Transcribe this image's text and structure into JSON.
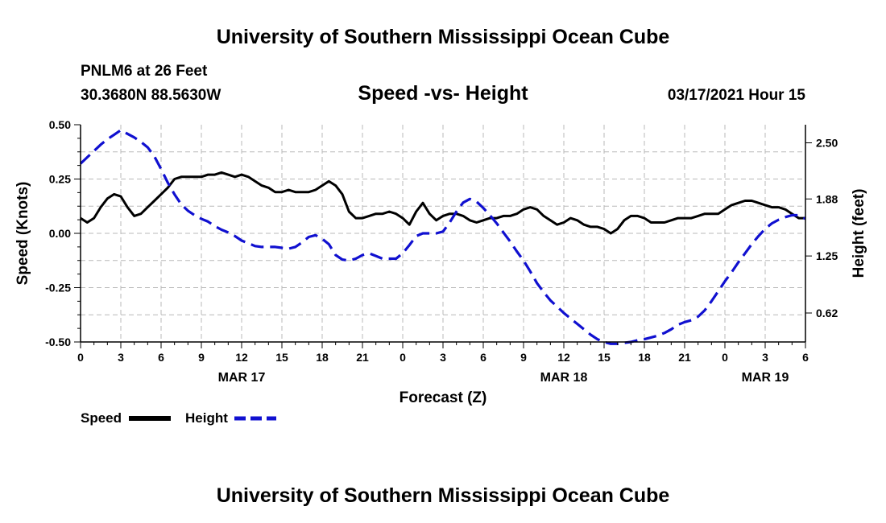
{
  "header": {
    "title": "University of Southern Mississippi Ocean Cube",
    "station": "PNLM6 at 26 Feet",
    "location": "30.3680N 88.5630W",
    "datetime": "03/17/2021 Hour 15",
    "footer_title": "University of Southern Mississippi Ocean Cube"
  },
  "chart_data": {
    "type": "line",
    "title": "Speed -vs- Height",
    "xlabel": "Forecast (Z)",
    "ylabel_left": "Speed (Knots)",
    "ylabel_right": "Height (feet)",
    "x_unit": "hours since 03/17 00Z",
    "xlim": [
      0,
      54
    ],
    "ylim_left": [
      -0.5,
      0.5
    ],
    "ylim_right": [
      0.3,
      2.7
    ],
    "x_ticks": [
      0,
      3,
      6,
      9,
      12,
      15,
      18,
      21,
      24,
      27,
      30,
      33,
      36,
      39,
      42,
      45,
      48,
      51,
      54
    ],
    "x_tick_labels": [
      "0",
      "3",
      "6",
      "9",
      "12",
      "15",
      "18",
      "21",
      "0",
      "3",
      "6",
      "9",
      "12",
      "15",
      "18",
      "21",
      "0",
      "3",
      "6"
    ],
    "date_labels": [
      {
        "x": 12,
        "label": "MAR 17"
      },
      {
        "x": 36,
        "label": "MAR 18"
      },
      {
        "x": 51,
        "label": "MAR 19"
      }
    ],
    "y_ticks_left": [
      "0.50",
      "0.25",
      "0.00",
      "-0.25",
      "-0.50"
    ],
    "y_tick_values_left": [
      0.5,
      0.25,
      0.0,
      -0.25,
      -0.5
    ],
    "y_ticks_right": [
      "2.50",
      "1.88",
      "1.25",
      "0.62"
    ],
    "y_tick_values_right": [
      2.5,
      1.88,
      1.25,
      0.62
    ],
    "grid": true,
    "legend": [
      {
        "label": "Speed",
        "color": "#000000",
        "dash": "solid"
      },
      {
        "label": "Height",
        "color": "#1010d0",
        "dash": "dashed"
      }
    ],
    "series": [
      {
        "name": "Speed",
        "axis": "left",
        "color": "#000000",
        "x": [
          0,
          0.5,
          1,
          1.5,
          2,
          2.5,
          3,
          3.5,
          4,
          4.5,
          5,
          5.5,
          6,
          6.5,
          7,
          7.5,
          8,
          8.5,
          9,
          9.5,
          10,
          10.5,
          11,
          11.5,
          12,
          12.5,
          13,
          13.5,
          14,
          14.5,
          15,
          15.5,
          16,
          16.5,
          17,
          17.5,
          18,
          18.5,
          19,
          19.5,
          20,
          20.5,
          21,
          21.5,
          22,
          22.5,
          23,
          23.5,
          24,
          24.5,
          25,
          25.5,
          26,
          26.5,
          27,
          27.5,
          28,
          28.5,
          29,
          29.5,
          30,
          30.5,
          31,
          31.5,
          32,
          32.5,
          33,
          33.5,
          34,
          34.5,
          35,
          35.5,
          36,
          36.5,
          37,
          37.5,
          38,
          38.5,
          39,
          39.5,
          40,
          40.5,
          41,
          41.5,
          42,
          42.5,
          43,
          43.5,
          44,
          44.5,
          45,
          45.5,
          46,
          46.5,
          47,
          47.5,
          48,
          48.5,
          49,
          49.5,
          50,
          50.5,
          51,
          51.5,
          52,
          52.5,
          53,
          53.5,
          54
        ],
        "values": [
          0.07,
          0.05,
          0.07,
          0.12,
          0.16,
          0.18,
          0.17,
          0.12,
          0.08,
          0.09,
          0.12,
          0.15,
          0.18,
          0.21,
          0.25,
          0.26,
          0.26,
          0.26,
          0.26,
          0.27,
          0.27,
          0.28,
          0.27,
          0.26,
          0.27,
          0.26,
          0.24,
          0.22,
          0.21,
          0.19,
          0.19,
          0.2,
          0.19,
          0.19,
          0.19,
          0.2,
          0.22,
          0.24,
          0.22,
          0.18,
          0.1,
          0.07,
          0.07,
          0.08,
          0.09,
          0.09,
          0.1,
          0.09,
          0.07,
          0.04,
          0.1,
          0.14,
          0.09,
          0.06,
          0.08,
          0.09,
          0.09,
          0.08,
          0.06,
          0.05,
          0.06,
          0.07,
          0.07,
          0.08,
          0.08,
          0.09,
          0.11,
          0.12,
          0.11,
          0.08,
          0.06,
          0.04,
          0.05,
          0.07,
          0.06,
          0.04,
          0.03,
          0.03,
          0.02,
          0.0,
          0.02,
          0.06,
          0.08,
          0.08,
          0.07,
          0.05,
          0.05,
          0.05,
          0.06,
          0.07,
          0.07,
          0.07,
          0.08,
          0.09,
          0.09,
          0.09,
          0.11,
          0.13,
          0.14,
          0.15,
          0.15,
          0.14,
          0.13,
          0.12,
          0.12,
          0.11,
          0.09,
          0.07,
          0.07
        ]
      },
      {
        "name": "Height",
        "axis": "right",
        "color": "#1010d0",
        "x": [
          0,
          0.5,
          1,
          1.5,
          2,
          2.5,
          3,
          3.5,
          4,
          4.5,
          5,
          5.5,
          6,
          6.5,
          7,
          7.5,
          8,
          8.5,
          9,
          9.5,
          10,
          10.5,
          11,
          11.5,
          12,
          12.5,
          13,
          13.5,
          14,
          14.5,
          15,
          15.5,
          16,
          16.5,
          17,
          17.5,
          18,
          18.5,
          19,
          19.5,
          20,
          20.5,
          21,
          21.5,
          22,
          22.5,
          23,
          23.5,
          24,
          24.5,
          25,
          25.5,
          26,
          26.5,
          27,
          27.5,
          28,
          28.5,
          29,
          29.5,
          30,
          30.5,
          31,
          31.5,
          32,
          32.5,
          33,
          33.5,
          34,
          34.5,
          35,
          35.5,
          36,
          36.5,
          37,
          37.5,
          38,
          38.5,
          39,
          39.5,
          40,
          40.5,
          41,
          41.5,
          42,
          42.5,
          43,
          43.5,
          44,
          44.5,
          45,
          45.5,
          46,
          46.5,
          47,
          47.5,
          48,
          48.5,
          49,
          49.5,
          50,
          50.5,
          51,
          51.5,
          52,
          52.5,
          53,
          53.5,
          54
        ],
        "values": [
          2.27,
          2.34,
          2.41,
          2.48,
          2.54,
          2.59,
          2.64,
          2.6,
          2.56,
          2.51,
          2.45,
          2.35,
          2.21,
          2.06,
          1.93,
          1.82,
          1.75,
          1.7,
          1.66,
          1.63,
          1.58,
          1.54,
          1.51,
          1.47,
          1.42,
          1.39,
          1.36,
          1.35,
          1.35,
          1.35,
          1.34,
          1.33,
          1.35,
          1.4,
          1.46,
          1.48,
          1.44,
          1.38,
          1.26,
          1.21,
          1.2,
          1.22,
          1.26,
          1.28,
          1.25,
          1.22,
          1.22,
          1.22,
          1.28,
          1.37,
          1.47,
          1.5,
          1.5,
          1.5,
          1.52,
          1.62,
          1.74,
          1.84,
          1.88,
          1.85,
          1.78,
          1.7,
          1.61,
          1.51,
          1.41,
          1.3,
          1.2,
          1.08,
          0.95,
          0.85,
          0.76,
          0.69,
          0.62,
          0.56,
          0.5,
          0.44,
          0.38,
          0.33,
          0.3,
          0.28,
          0.28,
          0.29,
          0.3,
          0.32,
          0.33,
          0.35,
          0.37,
          0.4,
          0.44,
          0.49,
          0.52,
          0.54,
          0.58,
          0.65,
          0.75,
          0.86,
          0.97,
          1.07,
          1.18,
          1.28,
          1.38,
          1.47,
          1.55,
          1.61,
          1.65,
          1.68,
          1.7,
          1.7,
          1.66
        ]
      }
    ]
  }
}
